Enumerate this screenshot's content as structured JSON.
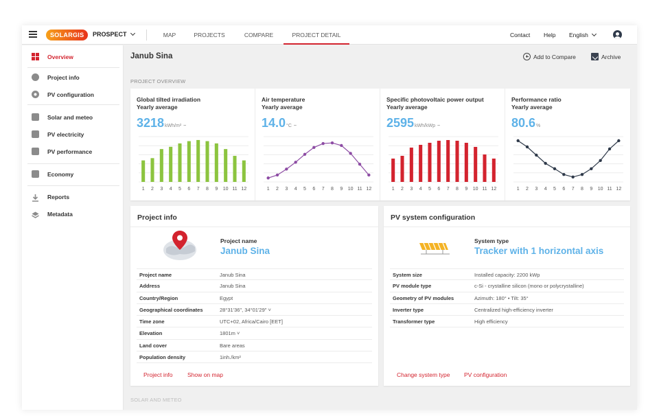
{
  "topbar": {
    "logo": "SOLARGIS",
    "product": "PROSPECT",
    "nav": [
      "MAP",
      "PROJECTS",
      "COMPARE",
      "PROJECT DETAIL"
    ],
    "active_nav": "PROJECT DETAIL",
    "contact": "Contact",
    "help": "Help",
    "language": "English"
  },
  "sidebar": {
    "items": [
      "Overview",
      "Project info",
      "PV configuration",
      "Solar and meteo",
      "PV electricity",
      "PV performance",
      "Economy",
      "Reports",
      "Metadata"
    ],
    "active": "Overview"
  },
  "header": {
    "title": "Janub Sina",
    "add_compare": "Add to Compare",
    "archive": "Archive"
  },
  "section": {
    "overview_label": "PROJECT OVERVIEW",
    "next_label": "SOLAR AND METEO"
  },
  "chart_data": [
    {
      "type": "bar",
      "title": "Global tilted irradiation",
      "subtitle": "Yearly average",
      "value": "3218",
      "unit": "kWh/m²",
      "categories": [
        "1",
        "2",
        "3",
        "4",
        "5",
        "6",
        "7",
        "8",
        "9",
        "10",
        "11",
        "12"
      ],
      "values": [
        190,
        210,
        290,
        310,
        340,
        360,
        370,
        360,
        340,
        290,
        230,
        190
      ],
      "ylim": [
        0,
        400
      ],
      "color": "#8cc43f"
    },
    {
      "type": "line",
      "title": "Air temperature",
      "subtitle": "Yearly average",
      "value": "14.0",
      "unit": "°C",
      "categories": [
        "1",
        "2",
        "3",
        "4",
        "5",
        "6",
        "7",
        "8",
        "9",
        "10",
        "11",
        "12"
      ],
      "values": [
        6.0,
        7.5,
        10.5,
        14.0,
        18.0,
        21.5,
        23.5,
        23.8,
        22.5,
        18.5,
        13.0,
        7.5
      ],
      "ylim": [
        4,
        27
      ],
      "color": "#8d4ca4"
    },
    {
      "type": "bar",
      "title": "Specific photovoltaic power output",
      "subtitle": "Yearly average",
      "value": "2595",
      "unit": "kWh/kWp",
      "categories": [
        "1",
        "2",
        "3",
        "4",
        "5",
        "6",
        "7",
        "8",
        "9",
        "10",
        "11",
        "12"
      ],
      "values": [
        170,
        190,
        250,
        270,
        285,
        300,
        305,
        300,
        285,
        255,
        200,
        170
      ],
      "ylim": [
        0,
        330
      ],
      "color": "#d3232e"
    },
    {
      "type": "line",
      "title": "Performance ratio",
      "subtitle": "Yearly average",
      "value": "80.6",
      "unit": "%",
      "categories": [
        "1",
        "2",
        "3",
        "4",
        "5",
        "6",
        "7",
        "8",
        "9",
        "10",
        "11",
        "12"
      ],
      "values": [
        86.0,
        84.5,
        82.5,
        80.5,
        79.2,
        77.8,
        77.2,
        77.8,
        79.2,
        81.2,
        84.0,
        86.0
      ],
      "ylim": [
        76,
        87
      ],
      "color": "#2f3a4a"
    }
  ],
  "project_info": {
    "title": "Project info",
    "hero_label": "Project name",
    "hero_value": "Janub Sina",
    "rows": [
      {
        "k": "Project name",
        "v": "Janub Sina"
      },
      {
        "k": "Address",
        "v": "Janub Sina"
      },
      {
        "k": "Country/Region",
        "v": "Egypt"
      },
      {
        "k": "Geographical coordinates",
        "v": "28°31'36\", 34°01'29\" ˅"
      },
      {
        "k": "Time zone",
        "v": "UTC+02, Africa/Cairo [EET]"
      },
      {
        "k": "Elevation",
        "v": "1801m ˅"
      },
      {
        "k": "Land cover",
        "v": "Bare areas"
      },
      {
        "k": "Population density",
        "v": "1inh./km²"
      }
    ],
    "links": [
      "Project info",
      "Show on map"
    ]
  },
  "pv_config": {
    "title": "PV system configuration",
    "hero_label": "System type",
    "hero_value": "Tracker with 1 horizontal axis",
    "rows": [
      {
        "k": "System size",
        "v": "Installed capacity: 2200 kWp"
      },
      {
        "k": "PV module type",
        "v": "c-Si - crystalline silicon (mono or polycrystalline)"
      },
      {
        "k": "Geometry of PV modules",
        "v": "Azimuth: 180° • Tilt: 35°"
      },
      {
        "k": "Inverter type",
        "v": "Centralized high-efficiency inverter"
      },
      {
        "k": "Transformer type",
        "v": "High efficiency"
      }
    ],
    "links": [
      "Change system type",
      "PV configuration"
    ]
  }
}
